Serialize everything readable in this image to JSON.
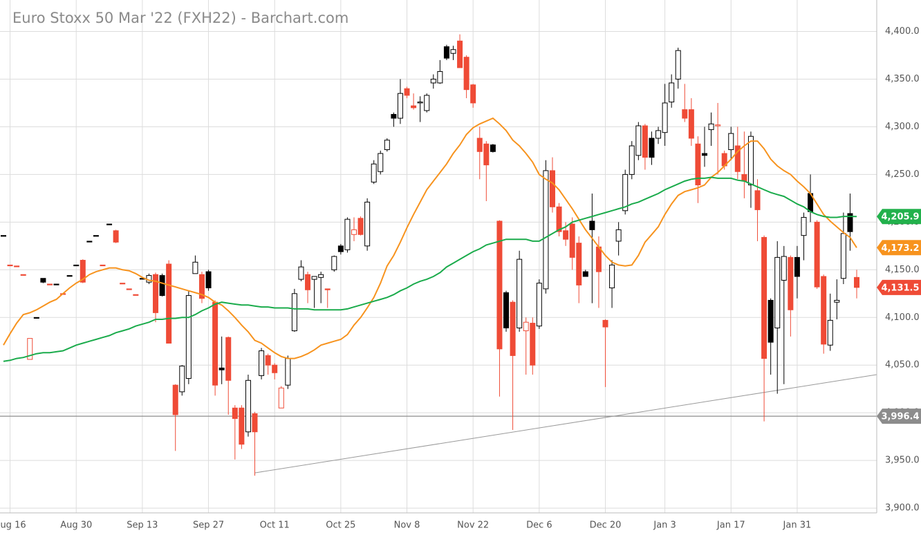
{
  "chart_data": {
    "type": "candlestick",
    "title": "Euro Stoxx 50 Mar '22 (FXH22) - Barchart.com",
    "categories": [
      null,
      "Aug 16",
      null,
      null,
      null,
      null,
      null,
      null,
      null,
      null,
      null,
      "Aug 30",
      null,
      null,
      null,
      null,
      null,
      null,
      null,
      null,
      null,
      "Sep 13",
      null,
      null,
      null,
      null,
      null,
      null,
      null,
      null,
      null,
      "Sep 27",
      null,
      null,
      null,
      null,
      null,
      null,
      null,
      null,
      null,
      "Oct 11",
      null,
      null,
      null,
      null,
      null,
      null,
      null,
      null,
      null,
      "Oct 25",
      null,
      null,
      null,
      null,
      null,
      null,
      null,
      null,
      null,
      "Nov 8",
      null,
      null,
      null,
      null,
      null,
      null,
      null,
      null,
      null,
      "Nov 22",
      null,
      null,
      null,
      null,
      null,
      null,
      null,
      null,
      null,
      "Dec 6",
      null,
      null,
      null,
      null,
      null,
      null,
      null,
      null,
      null,
      "Dec 20",
      null,
      null,
      null,
      null,
      null,
      null,
      null,
      null,
      "Jan 3",
      null,
      null,
      null,
      null,
      null,
      null,
      null,
      null,
      null,
      "Jan 17",
      null,
      null,
      null,
      null,
      null,
      null,
      null,
      null,
      null,
      "Jan 31",
      null,
      null,
      null,
      null,
      null,
      null,
      null,
      null,
      null
    ],
    "open": [
      4186,
      4155,
      4154,
      4145,
      4056,
      4100,
      4141,
      4135,
      4135,
      4125,
      4144,
      4155,
      4160,
      4180,
      4186,
      4155,
      4198,
      4191,
      4136,
      4130,
      4124,
      4141,
      4137,
      4145,
      4144,
      4156,
      4029,
      4022,
      4036,
      4146,
      4145,
      4148,
      4116,
      4047,
      4079,
      4005,
      4005,
      3980,
      3999,
      4039,
      4060,
      4050,
      4005,
      4029,
      4086,
      4140,
      4145,
      4140,
      4142,
      4130,
      4150,
      4175,
      4171,
      4187,
      4204,
      4175,
      4242,
      4253,
      4276,
      4313,
      4309,
      4340,
      4322,
      4325,
      4317,
      4346,
      4346,
      4384,
      4377,
      4390,
      4373,
      4344,
      4288,
      4282,
      4281,
      4201,
      4126,
      4116,
      4089,
      4086,
      4094,
      4091,
      4130,
      4254,
      4216,
      4191,
      4198,
      4178,
      4148,
      4201,
      4174,
      4097,
      4131,
      4180,
      4212,
      4250,
      4270,
      4301,
      4288,
      4288,
      4294,
      4326,
      4350,
      4318,
      4318,
      4282,
      4272,
      4297,
      4301,
      4272,
      4276,
      4280,
      4250,
      4239,
      4233,
      4184,
      4118,
      4089,
      4139,
      4163,
      4163,
      4186,
      4230,
      4200,
      4143,
      4071,
      4116,
      4141,
      4209,
      4142
    ],
    "high": [
      4186,
      4155,
      4154,
      4145,
      4078,
      4100,
      4141,
      4135,
      4135,
      4125,
      4144,
      4155,
      4161,
      4180,
      4186,
      4155,
      4198,
      4192,
      4136,
      4130,
      4124,
      4141,
      4146,
      4147,
      4146,
      4160,
      4030,
      4050,
      4128,
      4165,
      4148,
      4150,
      4118,
      4080,
      4080,
      4008,
      4008,
      4040,
      4001,
      4068,
      4062,
      4052,
      4028,
      4060,
      4130,
      4160,
      4148,
      4143,
      4148,
      4130,
      4165,
      4177,
      4205,
      4205,
      4206,
      4225,
      4265,
      4275,
      4288,
      4315,
      4350,
      4342,
      4335,
      4332,
      4335,
      4355,
      4370,
      4386,
      4385,
      4397,
      4375,
      4345,
      4300,
      4285,
      4282,
      4202,
      4128,
      4118,
      4170,
      4100,
      4100,
      4140,
      4265,
      4268,
      4220,
      4200,
      4205,
      4185,
      4150,
      4230,
      4185,
      4098,
      4160,
      4200,
      4255,
      4285,
      4305,
      4303,
      4295,
      4300,
      4345,
      4355,
      4383,
      4345,
      4330,
      4290,
      4300,
      4315,
      4325,
      4275,
      4300,
      4300,
      4295,
      4295,
      4245,
      4186,
      4120,
      4180,
      4175,
      4165,
      4175,
      4210,
      4250,
      4202,
      4145,
      4125,
      4140,
      4210,
      4230,
      4150
    ],
    "low": [
      4186,
      4155,
      4154,
      4145,
      4056,
      4100,
      4136,
      4135,
      4135,
      4125,
      4144,
      4155,
      4136,
      4180,
      4186,
      4155,
      4198,
      4178,
      4136,
      4130,
      4124,
      4141,
      4135,
      4095,
      4122,
      4073,
      3960,
      4018,
      4030,
      4146,
      4115,
      4128,
      4018,
      4030,
      3998,
      3951,
      3962,
      3975,
      3934,
      4035,
      4040,
      4035,
      4005,
      4025,
      4085,
      4138,
      4115,
      4110,
      4115,
      4110,
      4148,
      4166,
      4168,
      4180,
      4186,
      4170,
      4240,
      4250,
      4274,
      4300,
      4303,
      4330,
      4318,
      4305,
      4315,
      4340,
      4345,
      4370,
      4370,
      4362,
      4330,
      4320,
      4245,
      4222,
      4273,
      4017,
      4085,
      3982,
      4085,
      4040,
      4040,
      4088,
      4125,
      4210,
      4185,
      4175,
      4150,
      4115,
      4143,
      4115,
      4110,
      4027,
      4110,
      4165,
      4208,
      4245,
      4265,
      4255,
      4260,
      4282,
      4280,
      4320,
      4340,
      4305,
      4280,
      4220,
      4258,
      4280,
      4250,
      4255,
      4265,
      4245,
      4225,
      4215,
      4180,
      3991,
      4040,
      4020,
      4030,
      4080,
      4120,
      4160,
      4200,
      4130,
      4062,
      4065,
      4098,
      4135,
      4170,
      4120
    ],
    "close": [
      4186,
      4155,
      4154,
      4145,
      4078,
      4100,
      4137,
      4135,
      4135,
      4125,
      4144,
      4155,
      4137,
      4180,
      4186,
      4155,
      4198,
      4179,
      4136,
      4130,
      4124,
      4141,
      4144,
      4105,
      4123,
      4073,
      3998,
      4049,
      4123,
      4158,
      4120,
      4131,
      4029,
      4045,
      4034,
      3994,
      3967,
      4034,
      3980,
      4065,
      4050,
      4042,
      4026,
      4057,
      4125,
      4153,
      4129,
      4143,
      4145,
      4129,
      4164,
      4169,
      4203,
      4192,
      4187,
      4221,
      4261,
      4272,
      4286,
      4309,
      4335,
      4333,
      4320,
      4326,
      4333,
      4350,
      4358,
      4372,
      4381,
      4362,
      4339,
      4325,
      4274,
      4260,
      4274,
      4067,
      4089,
      4060,
      4161,
      4095,
      4050,
      4136,
      4254,
      4216,
      4190,
      4182,
      4163,
      4134,
      4143,
      4192,
      4148,
      4090,
      4155,
      4192,
      4250,
      4280,
      4301,
      4268,
      4268,
      4296,
      4325,
      4346,
      4380,
      4309,
      4288,
      4239,
      4270,
      4303,
      4302,
      4259,
      4293,
      4253,
      4243,
      4290,
      4213,
      4057,
      4074,
      4163,
      4164,
      4108,
      4143,
      4205,
      4211,
      4132,
      4072,
      4097,
      4118,
      4188,
      4190,
      4131.5
    ],
    "colors": {
      "up": "#000000",
      "down": "#ef4b36"
    },
    "moving_averages": [
      {
        "color": "#f7931e",
        "values": [
          4071,
          4083,
          4094,
          4103,
          4105,
          4108,
          4112,
          4116,
          4119,
          4125,
          4131,
          4136,
          4140,
          4145,
          4148,
          4150,
          4152,
          4152,
          4150,
          4149,
          4146,
          4142,
          4139,
          4138,
          4136,
          4134,
          4132,
          4130,
          4128,
          4126,
          4124,
          4121,
          4116,
          4113,
          4107,
          4100,
          4092,
          4085,
          4076,
          4073,
          4068,
          4063,
          4059,
          4057,
          4057,
          4059,
          4062,
          4066,
          4071,
          4073,
          4075,
          4077,
          4082,
          4092,
          4100,
          4110,
          4121,
          4136,
          4154,
          4165,
          4179,
          4194,
          4208,
          4221,
          4234,
          4243,
          4252,
          4261,
          4272,
          4281,
          4292,
          4299,
          4303,
          4306,
          4309,
          4303,
          4296,
          4286,
          4280,
          4272,
          4263,
          4250,
          4245,
          4241,
          4234,
          4224,
          4214,
          4203,
          4192,
          4183,
          4174,
          4165,
          4158,
          4155,
          4154,
          4155,
          4165,
          4179,
          4187,
          4195,
          4208,
          4219,
          4228,
          4232,
          4234,
          4236,
          4239,
          4247,
          4252,
          4259,
          4266,
          4274,
          4280,
          4285,
          4285,
          4277,
          4266,
          4259,
          4254,
          4250,
          4243,
          4237,
          4230,
          4219,
          4208,
          4201,
          4195,
          4189,
          4184,
          4173.2
        ]
      },
      {
        "color": "#1aab4b",
        "values": [
          4054,
          4055,
          4057,
          4058,
          4060,
          4062,
          4063,
          4063,
          4064,
          4065,
          4068,
          4071,
          4073,
          4075,
          4077,
          4079,
          4081,
          4084,
          4086,
          4088,
          4091,
          4093,
          4095,
          4098,
          4098,
          4099,
          4099,
          4100,
          4100,
          4103,
          4107,
          4110,
          4114,
          4116,
          4115,
          4114,
          4113,
          4113,
          4112,
          4111,
          4111,
          4110,
          4110,
          4110,
          4109,
          4109,
          4109,
          4108,
          4108,
          4108,
          4108,
          4108,
          4109,
          4111,
          4113,
          4115,
          4117,
          4119,
          4121,
          4124,
          4128,
          4131,
          4135,
          4138,
          4140,
          4143,
          4147,
          4153,
          4157,
          4161,
          4165,
          4169,
          4172,
          4176,
          4178,
          4180,
          4182,
          4182,
          4182,
          4182,
          4180,
          4180,
          4184,
          4188,
          4192,
          4195,
          4200,
          4202,
          4204,
          4206,
          4208,
          4210,
          4212,
          4214,
          4216,
          4219,
          4221,
          4224,
          4227,
          4230,
          4234,
          4237,
          4240,
          4243,
          4245,
          4246,
          4246,
          4247,
          4246,
          4246,
          4246,
          4244,
          4243,
          4240,
          4237,
          4234,
          4231,
          4229,
          4227,
          4223,
          4219,
          4216,
          4211,
          4208,
          4206,
          4205,
          4205,
          4206,
          4206,
          4205.9
        ]
      }
    ],
    "hline": {
      "value": 3996.4,
      "color": "#8c8c8c"
    },
    "trendline": {
      "x": [
        38,
        132
      ],
      "y": [
        3937,
        4040
      ],
      "color": "#999999"
    },
    "price_tags": [
      {
        "value": 4205.9,
        "label": "4,205.9",
        "color": "#22b14c"
      },
      {
        "value": 4173.2,
        "label": "4,173.2",
        "color": "#f7931e"
      },
      {
        "value": 4131.5,
        "label": "4,131.5",
        "color": "#ef4b36"
      },
      {
        "value": 3996.4,
        "label": "3,996.4",
        "color": "#8c8c8c"
      }
    ],
    "ylim": [
      3895,
      4433
    ],
    "yticks": [
      {
        "value": 3900,
        "label": "3,900.0"
      },
      {
        "value": 3950,
        "label": "3,950.0"
      },
      {
        "value": 4000,
        "label": "4,000.0"
      },
      {
        "value": 4050,
        "label": "4,050.0"
      },
      {
        "value": 4100,
        "label": "4,100.0"
      },
      {
        "value": 4150,
        "label": "4,150.0"
      },
      {
        "value": 4200,
        "label": "4,200.0"
      },
      {
        "value": 4250,
        "label": "4,250.0"
      },
      {
        "value": 4300,
        "label": "4,300.0"
      },
      {
        "value": 4350,
        "label": "4,350.0"
      },
      {
        "value": 4400,
        "label": "4,400.0"
      }
    ],
    "grid": true
  }
}
